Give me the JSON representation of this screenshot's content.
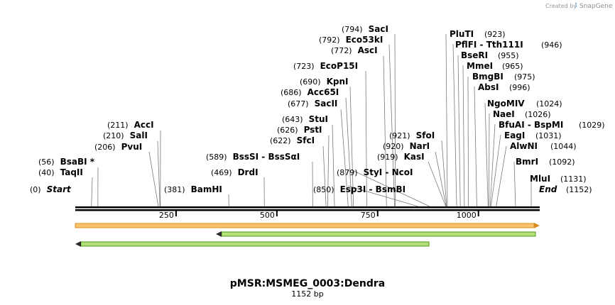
{
  "credit": {
    "prefix": "Created by",
    "brand": "SnapGene"
  },
  "sequence": {
    "name": "pMSR:MSMEG_0003:Dendra",
    "length_label": "1152 bp",
    "length": 1152
  },
  "colors": {
    "backbone": "#000000",
    "feature_orange_fill": "#f6c46b",
    "feature_orange_edge": "#d98c1f",
    "feature_green_fill": "#b8e07a",
    "feature_green_edge": "#4a9a1a",
    "arrow_dark": "#2a2a2a"
  },
  "ticks": [
    {
      "value": 250,
      "label": "250"
    },
    {
      "value": 500,
      "label": "500"
    },
    {
      "value": 750,
      "label": "750"
    },
    {
      "value": 1000,
      "label": "1000"
    }
  ],
  "features": [
    {
      "name": "feature-orange",
      "start": 0,
      "end": 1152,
      "direction": "forward",
      "color": "orange"
    },
    {
      "name": "feature-green-reverse-1",
      "start": 350,
      "end": 1152,
      "direction": "reverse",
      "color": "green"
    },
    {
      "name": "feature-green-reverse-2",
      "start": 0,
      "end": 877,
      "direction": "reverse",
      "color": "green"
    }
  ],
  "sites": [
    {
      "id": "start",
      "name": "Start",
      "pos_label": "(0)",
      "bp": 0,
      "style": "italic"
    },
    {
      "id": "taqii",
      "name": "TaqII",
      "pos_label": "(40)",
      "bp": 40
    },
    {
      "id": "bsabi",
      "name": "BsaBI *",
      "pos_label": "(56)",
      "bp": 56
    },
    {
      "id": "pvui",
      "name": "PvuI",
      "pos_label": "(206)",
      "bp": 206
    },
    {
      "id": "sali",
      "name": "SalI",
      "pos_label": "(210)",
      "bp": 210
    },
    {
      "id": "acci",
      "name": "AccI",
      "pos_label": "(211)",
      "bp": 211
    },
    {
      "id": "bamhi",
      "name": "BamHI",
      "pos_label": "(381)",
      "bp": 381
    },
    {
      "id": "drdi",
      "name": "DrdI",
      "pos_label": "(469)",
      "bp": 469
    },
    {
      "id": "bsssi",
      "name": "BssSI  - BssSαI",
      "pos_label": "(589)",
      "bp": 589
    },
    {
      "id": "sfci",
      "name": "SfcI",
      "pos_label": "(622)",
      "bp": 622
    },
    {
      "id": "psti",
      "name": "PstI",
      "pos_label": "(626)",
      "bp": 626
    },
    {
      "id": "stui",
      "name": "StuI",
      "pos_label": "(643)",
      "bp": 643
    },
    {
      "id": "sacii",
      "name": "SacII",
      "pos_label": "(677)",
      "bp": 677
    },
    {
      "id": "acc65i",
      "name": "Acc65I",
      "pos_label": "(686)",
      "bp": 686
    },
    {
      "id": "kpni",
      "name": "KpnI",
      "pos_label": "(690)",
      "bp": 690
    },
    {
      "id": "ecop15i",
      "name": "EcoP15I",
      "pos_label": "(723)",
      "bp": 723
    },
    {
      "id": "asci",
      "name": "AscI",
      "pos_label": "(772)",
      "bp": 772
    },
    {
      "id": "eco53ki",
      "name": "Eco53kI",
      "pos_label": "(792)",
      "bp": 792
    },
    {
      "id": "saci",
      "name": "SacI",
      "pos_label": "(794)",
      "bp": 794
    },
    {
      "id": "esp3i",
      "name": "Esp3I  - BsmBI",
      "pos_label": "(850)",
      "bp": 850
    },
    {
      "id": "styi",
      "name": "StyI  - NcoI",
      "pos_label": "(879)",
      "bp": 879
    },
    {
      "id": "kasi",
      "name": "KasI",
      "pos_label": "(919)",
      "bp": 919
    },
    {
      "id": "nari",
      "name": "NarI",
      "pos_label": "(920)",
      "bp": 920
    },
    {
      "id": "sfoi",
      "name": "SfoI",
      "pos_label": "(921)",
      "bp": 921
    },
    {
      "id": "pluti",
      "name": "PluTI",
      "pos_label": "(923)",
      "bp": 923
    },
    {
      "id": "pflfi",
      "name": "PflFI  - Tth111I",
      "pos_label": "(946)",
      "bp": 946
    },
    {
      "id": "bseri",
      "name": "BseRI",
      "pos_label": "(955)",
      "bp": 955
    },
    {
      "id": "mmei",
      "name": "MmeI",
      "pos_label": "(965)",
      "bp": 965
    },
    {
      "id": "bmgbi",
      "name": "BmgBI",
      "pos_label": "(975)",
      "bp": 975
    },
    {
      "id": "absi",
      "name": "AbsI",
      "pos_label": "(996)",
      "bp": 996
    },
    {
      "id": "ngomiv",
      "name": "NgoMIV",
      "pos_label": "(1024)",
      "bp": 1024
    },
    {
      "id": "naei",
      "name": "NaeI",
      "pos_label": "(1026)",
      "bp": 1026
    },
    {
      "id": "bfuai",
      "name": "BfuAI  - BspMI",
      "pos_label": "(1029)",
      "bp": 1029
    },
    {
      "id": "eagi",
      "name": "EagI",
      "pos_label": "(1031)",
      "bp": 1031
    },
    {
      "id": "alwni",
      "name": "AlwNI",
      "pos_label": "(1044)",
      "bp": 1044
    },
    {
      "id": "bmri",
      "name": "BmrI",
      "pos_label": "(1092)",
      "bp": 1092
    },
    {
      "id": "mlui",
      "name": "MluI",
      "pos_label": "(1131)",
      "bp": 1131
    },
    {
      "id": "end",
      "name": "End",
      "pos_label": "(1152)",
      "bp": 1152,
      "style": "italic"
    }
  ]
}
